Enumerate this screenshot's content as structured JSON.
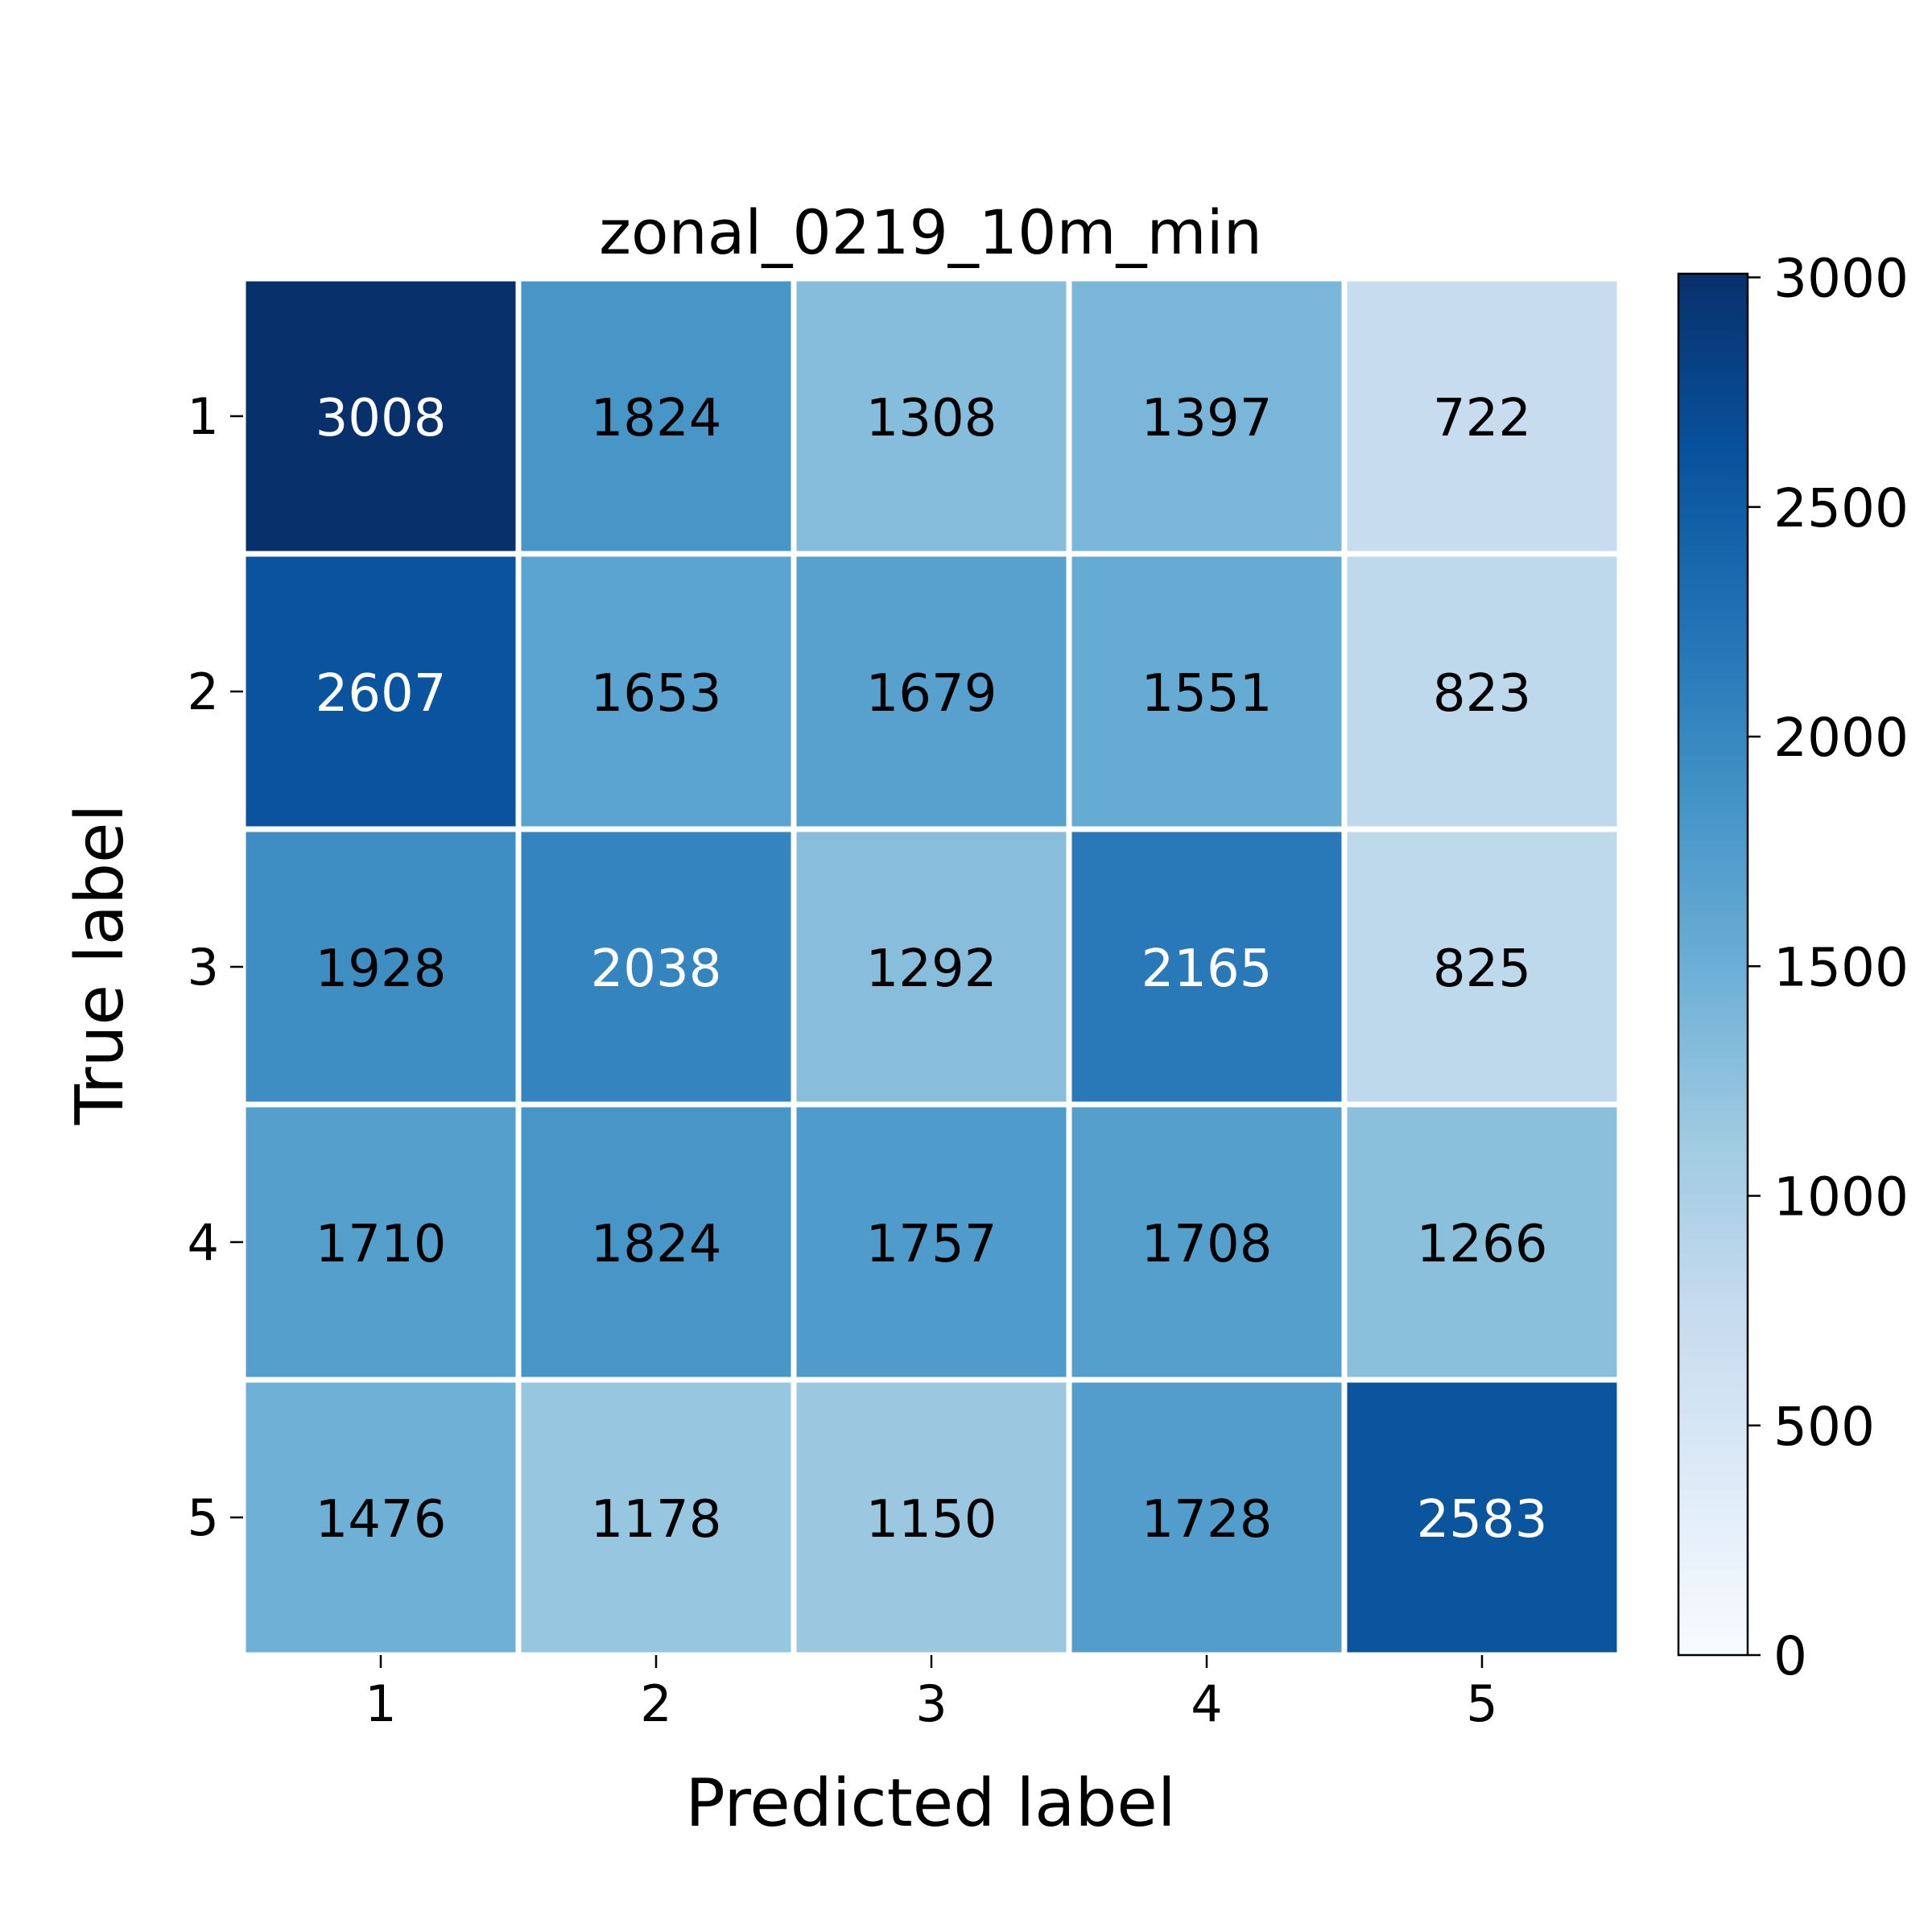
{
  "chart_data": {
    "type": "heatmap",
    "title": "zonal_0219_10m_min",
    "xlabel": "Predicted label",
    "ylabel": "True label",
    "x_categories": [
      "1",
      "2",
      "3",
      "4",
      "5"
    ],
    "y_categories": [
      "1",
      "2",
      "3",
      "4",
      "5"
    ],
    "values": [
      [
        3008,
        1824,
        1308,
        1397,
        722
      ],
      [
        2607,
        1653,
        1679,
        1551,
        823
      ],
      [
        1928,
        2038,
        1292,
        2165,
        825
      ],
      [
        1710,
        1824,
        1757,
        1708,
        1266
      ],
      [
        1476,
        1178,
        1150,
        1728,
        2583
      ]
    ],
    "colorbar": {
      "min": 0,
      "max": 3008,
      "ticks": [
        0,
        500,
        1000,
        1500,
        2000,
        2500,
        3000
      ],
      "colormap": "Blues"
    },
    "grid": true,
    "cell_border_color": "#ffffff"
  }
}
